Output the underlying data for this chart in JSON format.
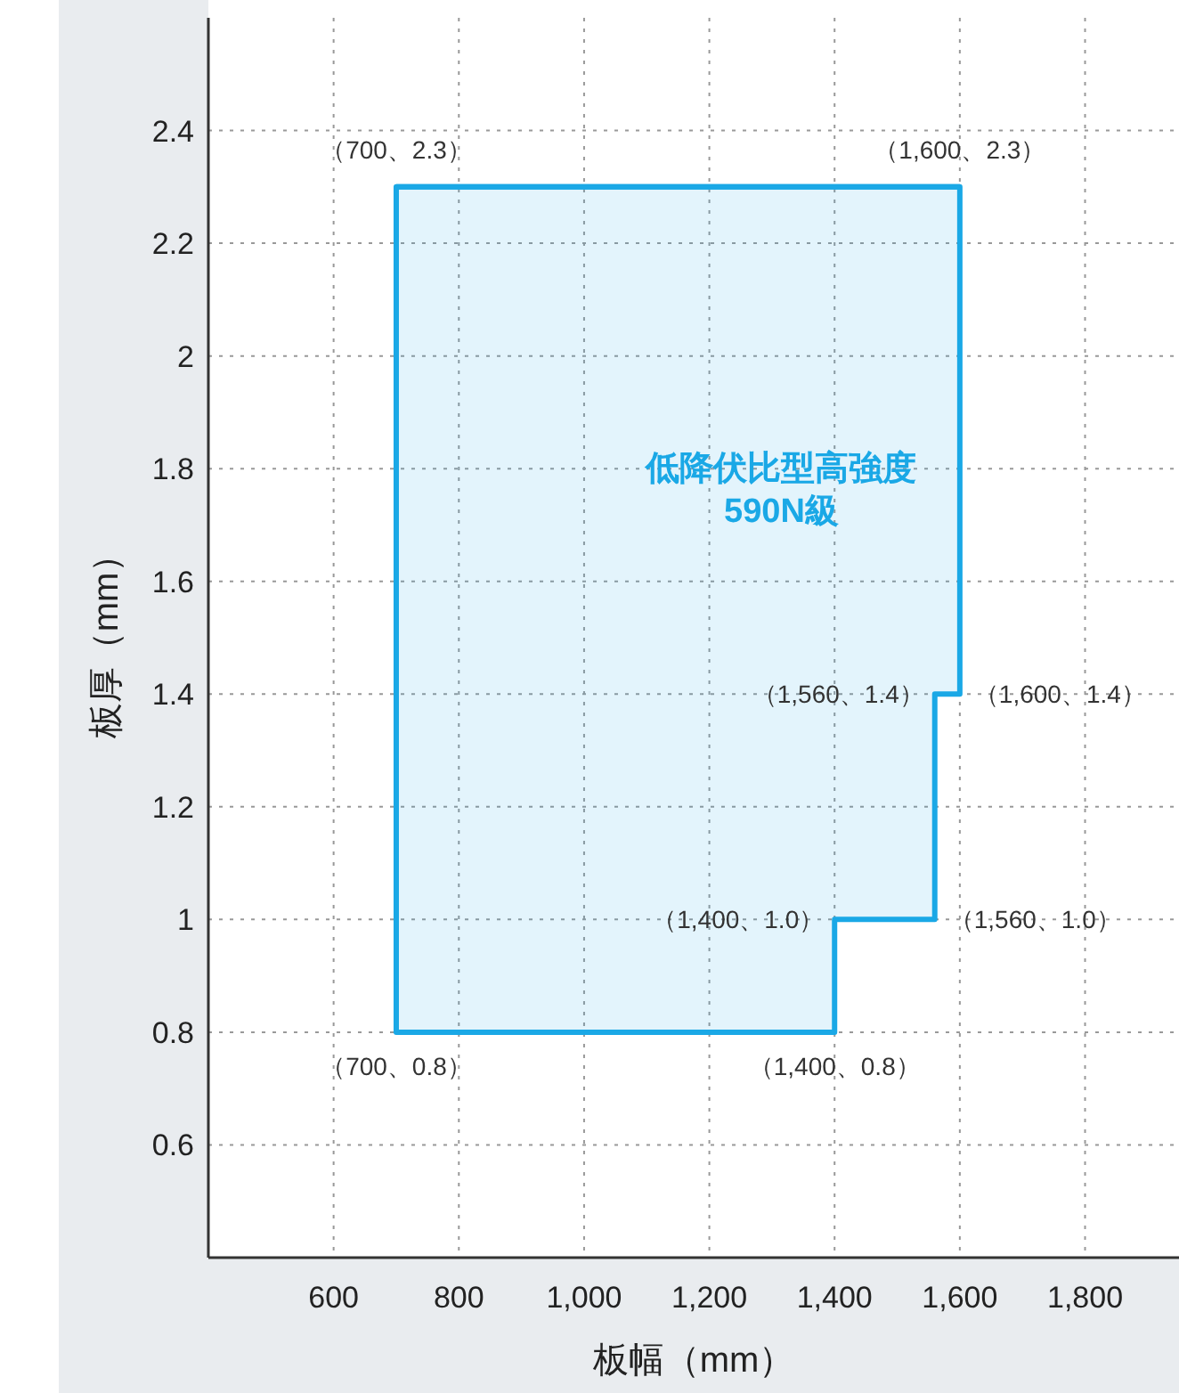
{
  "chart_data": {
    "type": "step",
    "xlabel": "板幅（mm）",
    "ylabel": "板厚（mm）",
    "xlim": [
      400,
      1950
    ],
    "ylim": [
      0.4,
      2.6
    ],
    "xticks": [
      600,
      800,
      {
        "value": 1000,
        "label": "1,000"
      },
      {
        "value": 1200,
        "label": "1,200"
      },
      {
        "value": 1400,
        "label": "1,400"
      },
      {
        "value": 1600,
        "label": "1,600"
      },
      {
        "value": 1800,
        "label": "1,800"
      }
    ],
    "yticks": [
      0.6,
      0.8,
      1,
      1.2,
      1.4,
      1.6,
      1.8,
      2,
      2.2,
      2.4
    ],
    "grid": true,
    "line_style": "solid",
    "series": [
      {
        "name": "低降伏比型高強度\n590N級",
        "color": "#1aa8e6",
        "x": [
          700,
          1400,
          1560,
          1600
        ],
        "values": [
          2.3,
          2.3,
          2.3,
          2.3
        ],
        "lower": [
          0.8,
          1.0,
          1.4,
          1.4
        ],
        "upper": [
          2.3,
          2.3,
          2.3,
          2.3
        ]
      }
    ],
    "annotations": [
      {
        "text": "（700、2.3）",
        "x": 700,
        "y": 2.3
      },
      {
        "text": "（1,600、2.3）",
        "x": 1600,
        "y": 2.3
      },
      {
        "text": "（1,560、1.4）",
        "x": 1560,
        "y": 1.4
      },
      {
        "text": "（1,600、1.4）",
        "x": 1600,
        "y": 1.4
      },
      {
        "text": "（1,400、1.0）",
        "x": 1400,
        "y": 1.0
      },
      {
        "text": "（1,560、1.0）",
        "x": 1560,
        "y": 1.0
      },
      {
        "text": "（700、0.8）",
        "x": 700,
        "y": 0.8
      },
      {
        "text": "（1,400、0.8）",
        "x": 1400,
        "y": 0.8
      }
    ]
  }
}
